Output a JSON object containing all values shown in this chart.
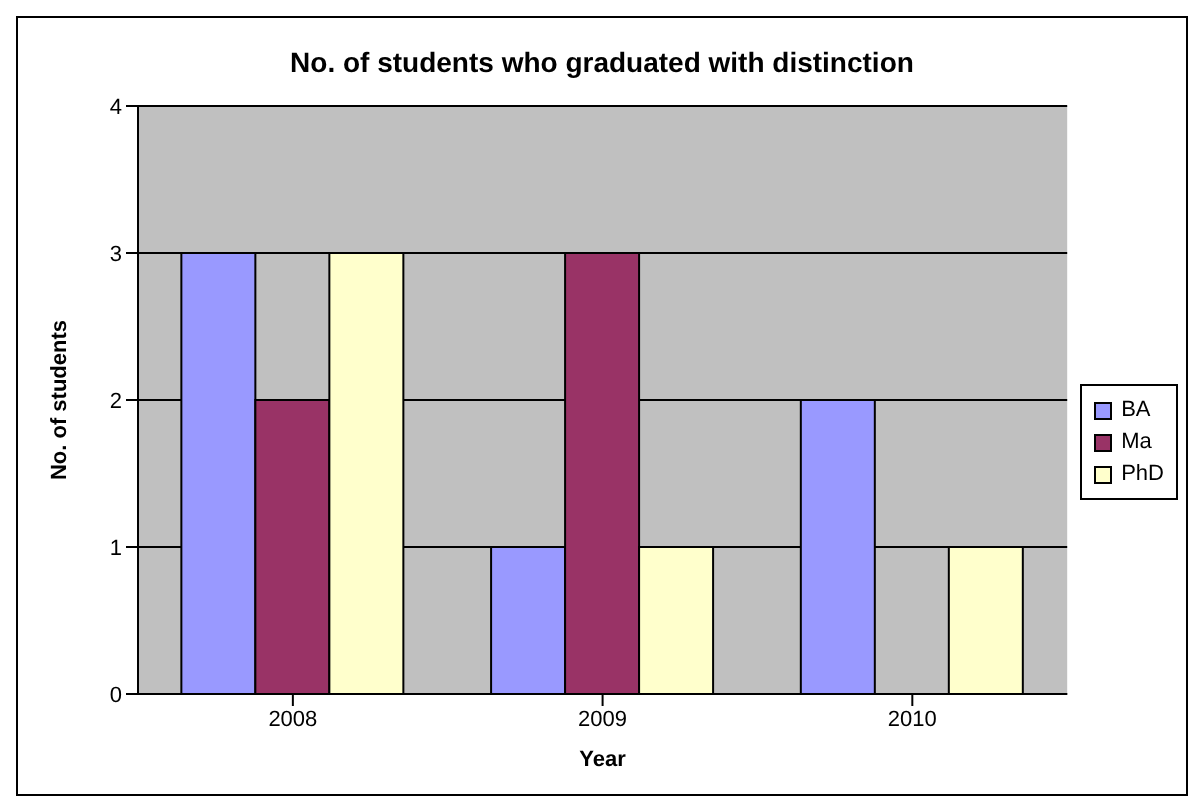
{
  "chart_data": {
    "type": "bar",
    "title": "No. of students who graduated with distinction",
    "xlabel": "Year",
    "ylabel": "No. of students",
    "categories": [
      "2008",
      "2009",
      "2010"
    ],
    "series": [
      {
        "name": "BA",
        "color": "#9999ff",
        "values": [
          3,
          1,
          2
        ]
      },
      {
        "name": "Ma",
        "color": "#993366",
        "values": [
          2,
          3,
          0
        ]
      },
      {
        "name": "PhD",
        "color": "#ffffcc",
        "values": [
          3,
          1,
          1
        ]
      }
    ],
    "ylim": [
      0,
      4
    ],
    "yticks": [
      0,
      1,
      2,
      3,
      4
    ],
    "grid": "y",
    "legend": "right"
  }
}
